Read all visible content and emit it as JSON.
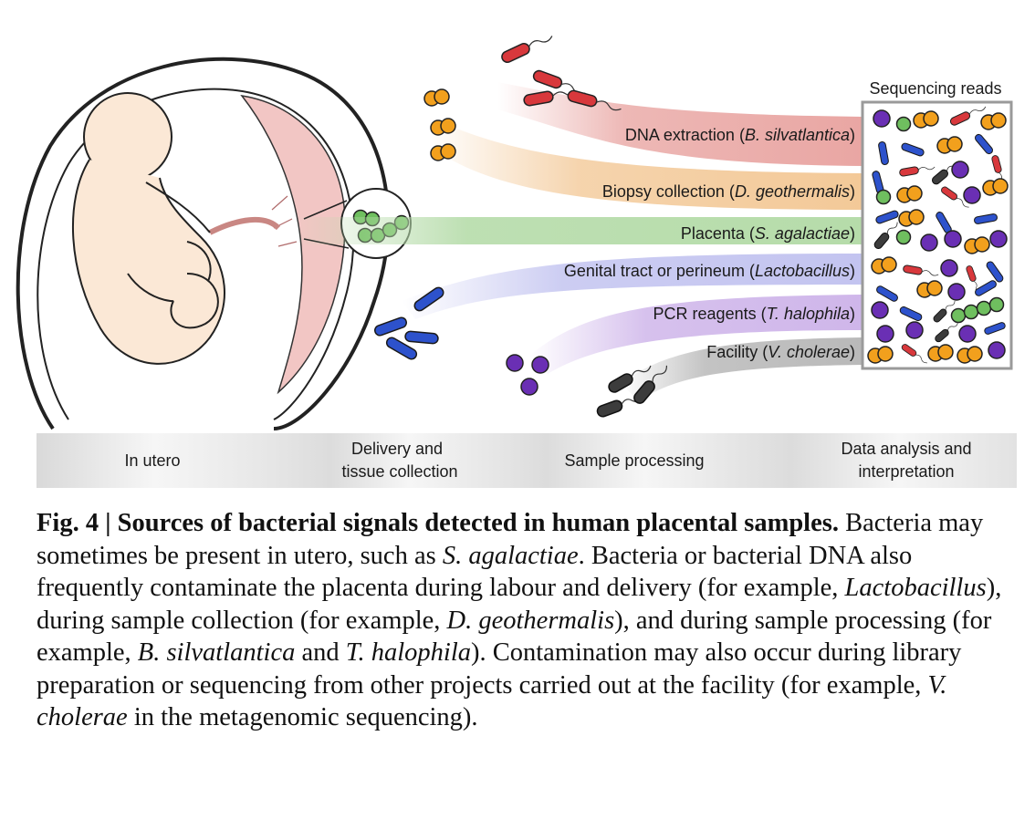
{
  "figure": {
    "reads_title": "Sequencing reads",
    "flows": [
      {
        "prefix": "DNA extraction (",
        "species": "B. silvatlantica",
        "suffix": ")",
        "color": "#e9a6a3"
      },
      {
        "prefix": "Biopsy collection (",
        "species": "D. geothermalis",
        "suffix": ")",
        "color": "#f3c998"
      },
      {
        "prefix": "Placenta (",
        "species": "S. agalactiae",
        "suffix": ")",
        "color": "#b6dcaa"
      },
      {
        "prefix": "Genital tract or perineum (",
        "species": "Lactobacillus",
        "suffix": ")",
        "color": "#c3c4f0"
      },
      {
        "prefix": "PCR reagents (",
        "species": "T. halophila",
        "suffix": ")",
        "color": "#cfb6ea"
      },
      {
        "prefix": "Facility (",
        "species": "V. cholerae",
        "suffix": ")",
        "color": "#b9b9b9"
      }
    ],
    "stages": [
      "In utero",
      "Delivery and",
      "tissue collection",
      "Sample processing",
      "Data analysis and",
      "interpretation"
    ],
    "bacteria_colors": {
      "red": "#d8383c",
      "orange": "#f2a01d",
      "green": "#6fbf5f",
      "blue": "#2d52cc",
      "purple": "#6a2fb4",
      "gray": "#3c3c3c"
    }
  },
  "caption": {
    "title": "Fig. 4 | Sources of bacterial signals detected in human placental samples.",
    "t1": " Bacteria may sometimes be present in utero, such as ",
    "i1": "S. agalactiae",
    "t2": ". Bacteria or bacterial DNA also frequently contaminate the placenta during labour and delivery (for example, ",
    "i2": "Lactobacillus",
    "t3": "), during sample collection (for example, ",
    "i3": "D. geothermalis",
    "t4": "), and during sample processing (for example, ",
    "i4": "B. silvatlantica",
    "t5": " and ",
    "i5": "T. halophila",
    "t6": "). Contamination may also occur during library preparation or sequencing from other projects carried out at the facility (for example, ",
    "i6": "V. cholerae",
    "t7": " in the metagenomic sequencing)."
  }
}
